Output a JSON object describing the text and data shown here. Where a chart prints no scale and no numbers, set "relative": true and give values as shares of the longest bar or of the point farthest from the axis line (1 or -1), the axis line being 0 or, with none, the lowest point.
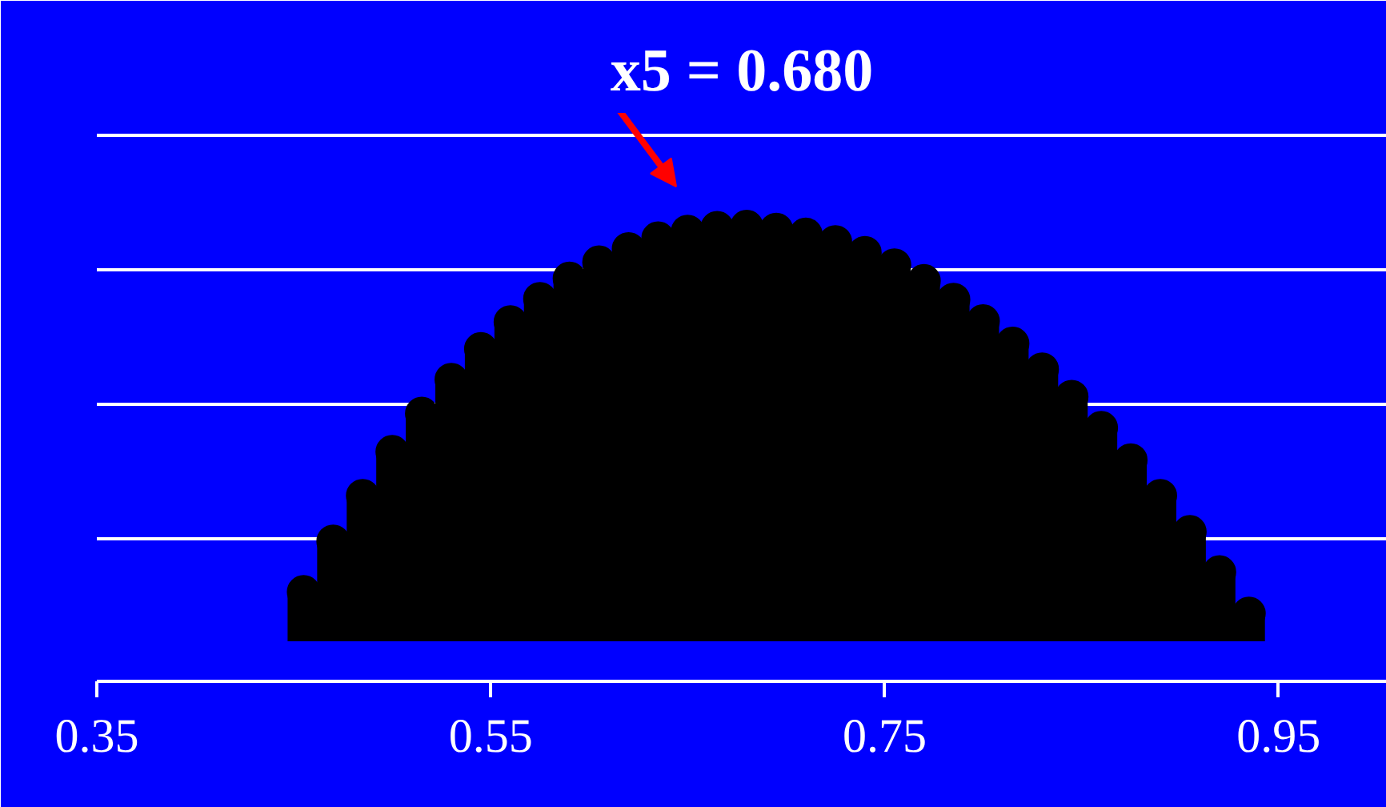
{
  "chart_data": {
    "type": "lollipop",
    "title": "x5 = 0.680",
    "relative": true,
    "grid": "y",
    "marker": "circle",
    "color": "#000000",
    "x": [
      0.455,
      0.47,
      0.485,
      0.5,
      0.515,
      0.53,
      0.545,
      0.56,
      0.575,
      0.59,
      0.605,
      0.62,
      0.635,
      0.65,
      0.665,
      0.68,
      0.695,
      0.71,
      0.725,
      0.74,
      0.755,
      0.77,
      0.785,
      0.8,
      0.815,
      0.83,
      0.845,
      0.86,
      0.875,
      0.89,
      0.905,
      0.92,
      0.935
    ],
    "values": [
      0.119,
      0.241,
      0.351,
      0.457,
      0.549,
      0.631,
      0.705,
      0.77,
      0.826,
      0.875,
      0.914,
      0.946,
      0.972,
      0.988,
      0.997,
      1,
      0.993,
      0.981,
      0.963,
      0.937,
      0.907,
      0.869,
      0.824,
      0.772,
      0.718,
      0.656,
      0.59,
      0.515,
      0.437,
      0.351,
      0.264,
      0.167,
      0.067
    ],
    "xlim": [
      0.35,
      1.005
    ],
    "xticks": [
      0.35,
      0.55,
      0.75,
      0.95
    ]
  }
}
